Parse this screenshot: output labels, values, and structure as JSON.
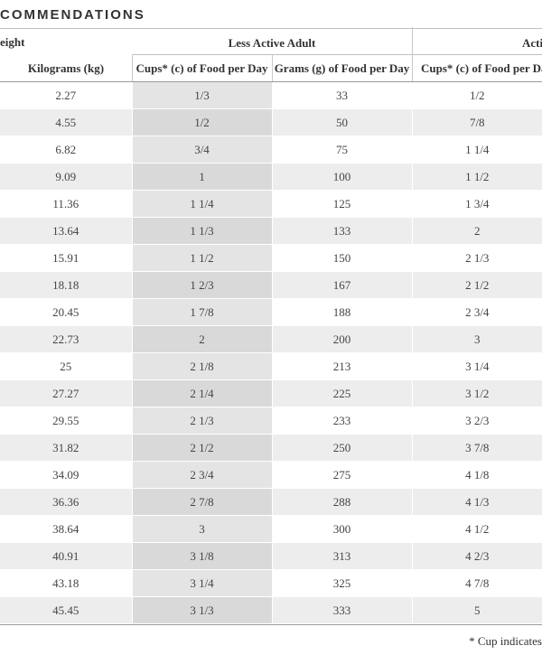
{
  "title": "COMMENDATIONS",
  "headers": {
    "weight": "eight",
    "less_active": "Less Active Adult",
    "active": "Acti",
    "kilograms": "Kilograms (kg)",
    "cups_less": "Cups* (c) of Food per Day",
    "grams_less": "Grams (g) of Food per Day",
    "cups_active": "Cups* (c) of Food per Day"
  },
  "rows": [
    {
      "kg": "2.27",
      "cups_less": "1/3",
      "grams_less": "33",
      "cups_active": "1/2"
    },
    {
      "kg": "4.55",
      "cups_less": "1/2",
      "grams_less": "50",
      "cups_active": "7/8"
    },
    {
      "kg": "6.82",
      "cups_less": "3/4",
      "grams_less": "75",
      "cups_active": "1 1/4"
    },
    {
      "kg": "9.09",
      "cups_less": "1",
      "grams_less": "100",
      "cups_active": "1 1/2"
    },
    {
      "kg": "11.36",
      "cups_less": "1 1/4",
      "grams_less": "125",
      "cups_active": "1 3/4"
    },
    {
      "kg": "13.64",
      "cups_less": "1 1/3",
      "grams_less": "133",
      "cups_active": "2"
    },
    {
      "kg": "15.91",
      "cups_less": "1 1/2",
      "grams_less": "150",
      "cups_active": "2 1/3"
    },
    {
      "kg": "18.18",
      "cups_less": "1 2/3",
      "grams_less": "167",
      "cups_active": "2 1/2"
    },
    {
      "kg": "20.45",
      "cups_less": "1 7/8",
      "grams_less": "188",
      "cups_active": "2 3/4"
    },
    {
      "kg": "22.73",
      "cups_less": "2",
      "grams_less": "200",
      "cups_active": "3"
    },
    {
      "kg": "25",
      "cups_less": "2 1/8",
      "grams_less": "213",
      "cups_active": "3 1/4"
    },
    {
      "kg": "27.27",
      "cups_less": "2 1/4",
      "grams_less": "225",
      "cups_active": "3 1/2"
    },
    {
      "kg": "29.55",
      "cups_less": "2 1/3",
      "grams_less": "233",
      "cups_active": "3 2/3"
    },
    {
      "kg": "31.82",
      "cups_less": "2 1/2",
      "grams_less": "250",
      "cups_active": "3 7/8"
    },
    {
      "kg": "34.09",
      "cups_less": "2 3/4",
      "grams_less": "275",
      "cups_active": "4 1/8"
    },
    {
      "kg": "36.36",
      "cups_less": "2 7/8",
      "grams_less": "288",
      "cups_active": "4 1/3"
    },
    {
      "kg": "38.64",
      "cups_less": "3",
      "grams_less": "300",
      "cups_active": "4 1/2"
    },
    {
      "kg": "40.91",
      "cups_less": "3 1/8",
      "grams_less": "313",
      "cups_active": "4 2/3"
    },
    {
      "kg": "43.18",
      "cups_less": "3 1/4",
      "grams_less": "325",
      "cups_active": "4 7/8"
    },
    {
      "kg": "45.45",
      "cups_less": "3 1/3",
      "grams_less": "333",
      "cups_active": "5"
    }
  ],
  "footnote": "* Cup indicates"
}
